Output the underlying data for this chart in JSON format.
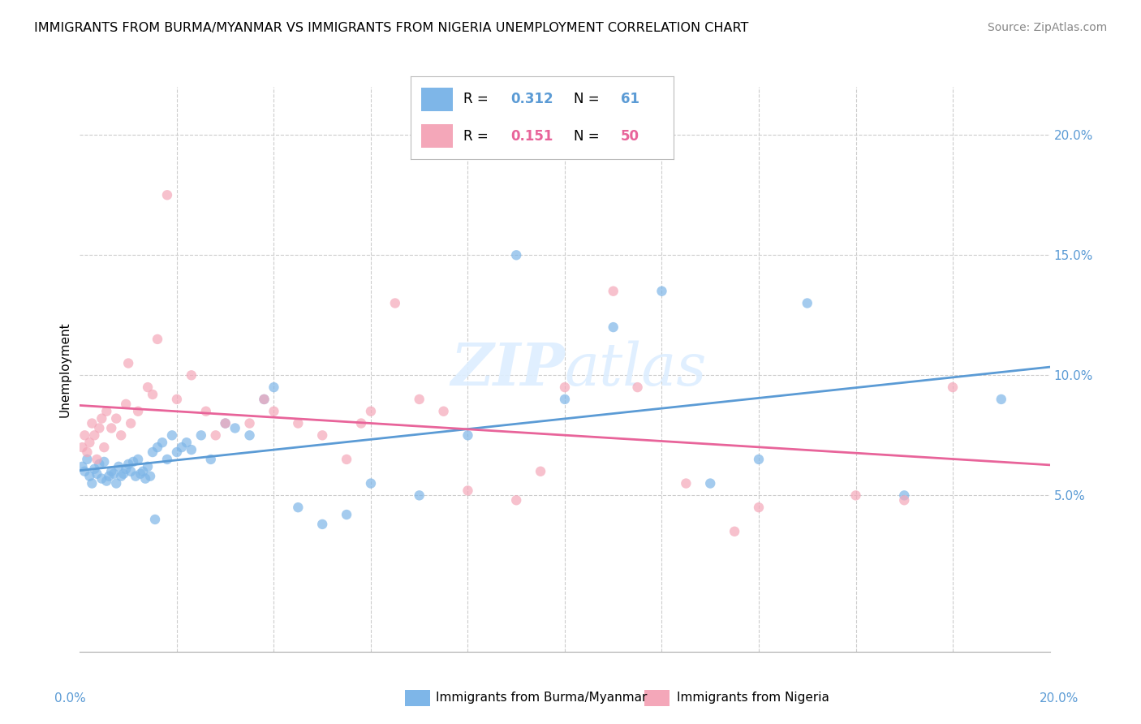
{
  "title": "IMMIGRANTS FROM BURMA/MYANMAR VS IMMIGRANTS FROM NIGERIA UNEMPLOYMENT CORRELATION CHART",
  "source": "Source: ZipAtlas.com",
  "ylabel": "Unemployment",
  "r_burma": 0.312,
  "n_burma": 61,
  "r_nigeria": 0.151,
  "n_nigeria": 50,
  "legend_burma": "Immigrants from Burma/Myanmar",
  "legend_nigeria": "Immigrants from Nigeria",
  "color_burma": "#7EB6E8",
  "color_nigeria": "#F4A7B9",
  "color_burma_line": "#5B9BD5",
  "color_nigeria_line": "#E8649A",
  "xlim": [
    0,
    20
  ],
  "ylim": [
    -1.5,
    22
  ],
  "ytick_vals": [
    0,
    5,
    10,
    15,
    20
  ],
  "ytick_labels": [
    "",
    "5.0%",
    "10.0%",
    "15.0%",
    "20.0%"
  ],
  "burma_x": [
    0.05,
    0.1,
    0.15,
    0.2,
    0.25,
    0.3,
    0.35,
    0.4,
    0.45,
    0.5,
    0.55,
    0.6,
    0.65,
    0.7,
    0.75,
    0.8,
    0.85,
    0.9,
    0.95,
    1.0,
    1.05,
    1.1,
    1.15,
    1.2,
    1.25,
    1.3,
    1.35,
    1.4,
    1.45,
    1.5,
    1.6,
    1.7,
    1.8,
    1.9,
    2.0,
    2.1,
    2.2,
    2.3,
    2.5,
    2.7,
    3.0,
    3.2,
    3.5,
    3.8,
    4.0,
    4.5,
    5.0,
    5.5,
    6.0,
    7.0,
    8.0,
    9.0,
    10.0,
    11.0,
    12.0,
    13.0,
    14.0,
    15.0,
    17.0,
    19.0,
    1.55
  ],
  "burma_y": [
    6.2,
    6.0,
    6.5,
    5.8,
    5.5,
    6.1,
    5.9,
    6.3,
    5.7,
    6.4,
    5.6,
    5.8,
    6.0,
    5.9,
    5.5,
    6.2,
    5.8,
    5.9,
    6.1,
    6.3,
    6.0,
    6.4,
    5.8,
    6.5,
    5.9,
    6.0,
    5.7,
    6.2,
    5.8,
    6.8,
    7.0,
    7.2,
    6.5,
    7.5,
    6.8,
    7.0,
    7.2,
    6.9,
    7.5,
    6.5,
    8.0,
    7.8,
    7.5,
    9.0,
    9.5,
    4.5,
    3.8,
    4.2,
    5.5,
    5.0,
    7.5,
    15.0,
    9.0,
    12.0,
    13.5,
    5.5,
    6.5,
    13.0,
    5.0,
    9.0,
    4.0
  ],
  "nigeria_x": [
    0.05,
    0.1,
    0.15,
    0.2,
    0.25,
    0.3,
    0.35,
    0.4,
    0.45,
    0.5,
    0.55,
    0.65,
    0.75,
    0.85,
    0.95,
    1.05,
    1.2,
    1.4,
    1.6,
    1.8,
    2.0,
    2.3,
    2.6,
    3.0,
    3.5,
    4.0,
    4.5,
    5.0,
    5.5,
    6.0,
    7.0,
    8.0,
    9.0,
    10.0,
    11.0,
    12.5,
    14.0,
    16.0,
    18.0,
    1.0,
    1.5,
    2.8,
    3.8,
    5.8,
    6.5,
    7.5,
    9.5,
    11.5,
    13.5,
    17.0
  ],
  "nigeria_y": [
    7.0,
    7.5,
    6.8,
    7.2,
    8.0,
    7.5,
    6.5,
    7.8,
    8.2,
    7.0,
    8.5,
    7.8,
    8.2,
    7.5,
    8.8,
    8.0,
    8.5,
    9.5,
    11.5,
    17.5,
    9.0,
    10.0,
    8.5,
    8.0,
    8.0,
    8.5,
    8.0,
    7.5,
    6.5,
    8.5,
    9.0,
    5.2,
    4.8,
    9.5,
    13.5,
    5.5,
    4.5,
    5.0,
    9.5,
    10.5,
    9.2,
    7.5,
    9.0,
    8.0,
    13.0,
    8.5,
    6.0,
    9.5,
    3.5,
    4.8
  ]
}
